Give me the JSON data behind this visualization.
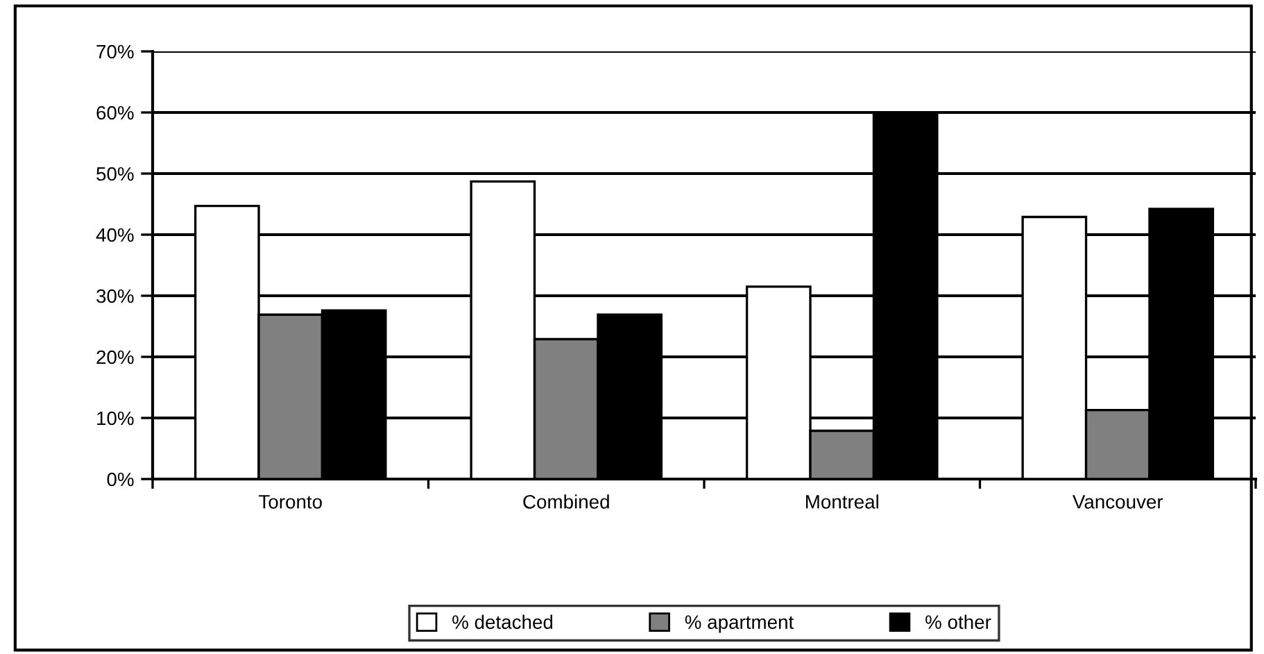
{
  "chart_data": {
    "type": "bar",
    "categories": [
      "Toronto",
      "Combined",
      "Montreal",
      "Vancouver"
    ],
    "series": [
      {
        "name": "% detached",
        "color": "#ffffff",
        "values": [
          44.7,
          48.7,
          31.5,
          42.9
        ]
      },
      {
        "name": "% apartment",
        "color": "#808080",
        "values": [
          26.9,
          22.9,
          7.9,
          11.3
        ]
      },
      {
        "name": "% other",
        "color": "#000000",
        "values": [
          27.6,
          26.9,
          60,
          44.2
        ]
      }
    ],
    "ylim": [
      0,
      70
    ],
    "yticks": [
      {
        "value": 0,
        "label": "0%"
      },
      {
        "value": 10,
        "label": "10%"
      },
      {
        "value": 20,
        "label": "20%"
      },
      {
        "value": 30,
        "label": "30%"
      },
      {
        "value": 40,
        "label": "40%"
      },
      {
        "value": 50,
        "label": "50%"
      },
      {
        "value": 60,
        "label": "60%"
      },
      {
        "value": 70,
        "label": "70%"
      }
    ],
    "grid": "y",
    "legend": "bottom"
  }
}
